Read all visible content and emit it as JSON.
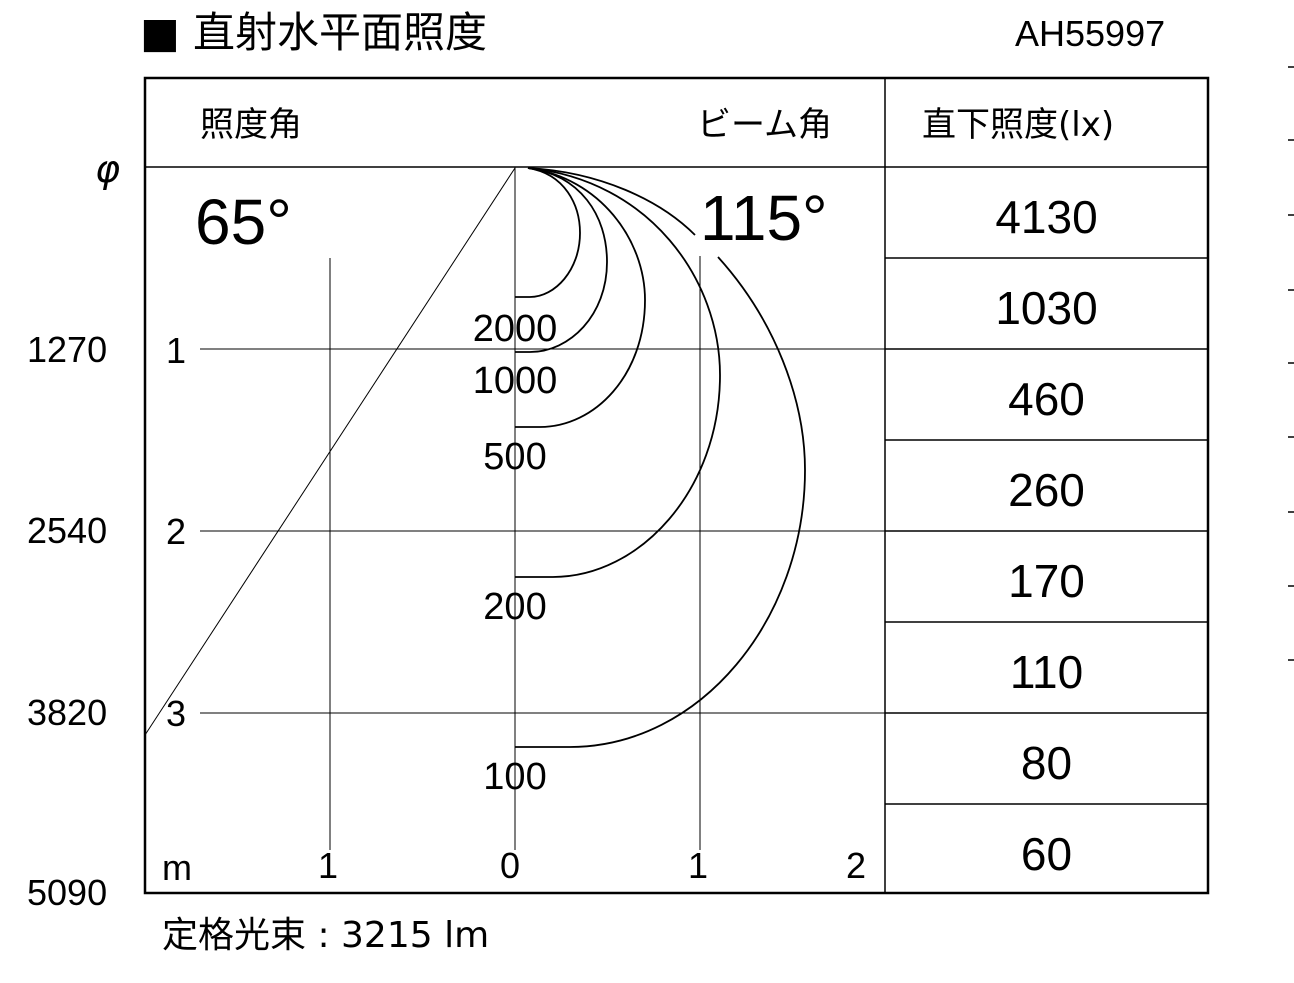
{
  "header": {
    "title_marker": "■",
    "title": "直射水平面照度",
    "model": "AH55997"
  },
  "chart_header": {
    "illuminance_angle_label": "照度角",
    "beam_angle_label": "ビーム角",
    "direct_illuminance_label": "直下照度(lx)"
  },
  "angles": {
    "illuminance_angle": "65°",
    "beam_angle": "115°"
  },
  "axis": {
    "diameter_symbol": "φ",
    "diameter_values": [
      "1270",
      "2540",
      "3820",
      "5090"
    ],
    "distance_ticks": [
      "1",
      "2",
      "3"
    ],
    "unit": "m",
    "horizontal_ticks": [
      "1",
      "0",
      "1",
      "2"
    ]
  },
  "contours": [
    "2000",
    "1000",
    "500",
    "200",
    "100"
  ],
  "direct_illuminance": [
    "4130",
    "1030",
    "460",
    "260",
    "170",
    "110",
    "80",
    "60"
  ],
  "footer": {
    "rated_flux": "定格光束 : 3215 lm"
  }
}
